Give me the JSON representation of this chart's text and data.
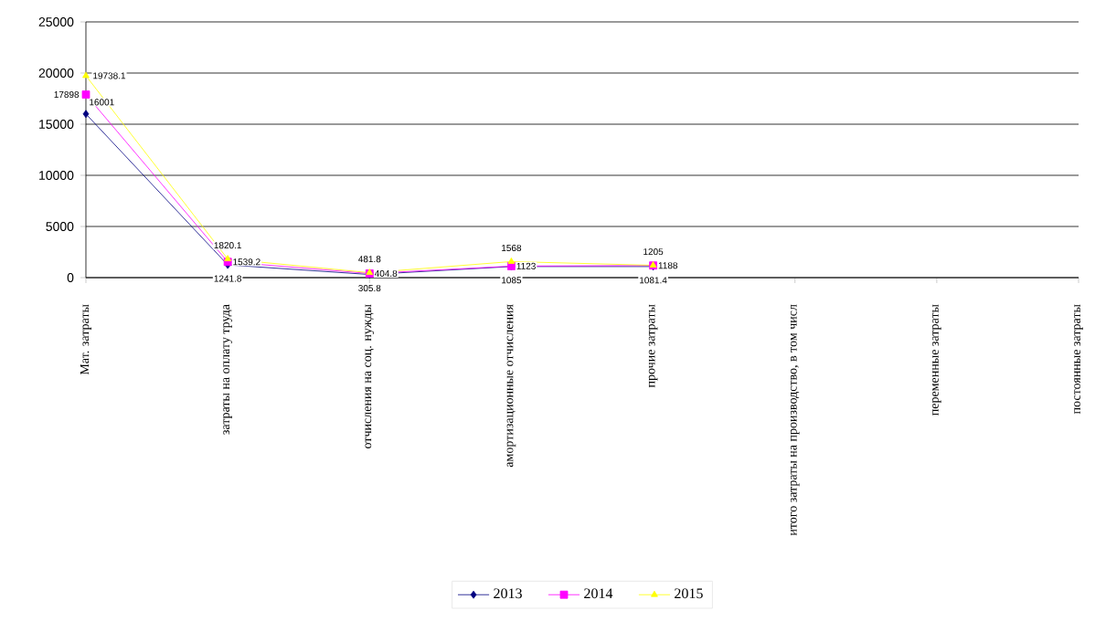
{
  "chart_data": {
    "type": "line",
    "categories": [
      "Мат. затраты",
      "затраты на оплату труда",
      "отчисления на соц. нужды",
      "амортизационные отчисления",
      "прочие затраты",
      "итого затраты на производство, в том числ",
      "переменные затраты",
      "постоянные затраты"
    ],
    "series": [
      {
        "name": "2013",
        "color": "#000080",
        "marker": "diamond",
        "values": [
          16001,
          1241.8,
          305.8,
          1085,
          1081.4,
          null,
          null,
          null
        ],
        "value_labels": [
          "16001",
          "1241.8",
          "305.8",
          "1085",
          "1081.4",
          null,
          null,
          null
        ]
      },
      {
        "name": "2014",
        "color": "#ff00ff",
        "marker": "square",
        "values": [
          17898,
          1539.2,
          404.8,
          1123,
          1188,
          null,
          null,
          null
        ],
        "value_labels": [
          "17898",
          "1539.2",
          "404.8",
          "1123",
          "1188",
          null,
          null,
          null
        ]
      },
      {
        "name": "2015",
        "color": "#ffff00",
        "marker": "triangle",
        "values": [
          19738.1,
          1820.1,
          481.8,
          1568,
          1205,
          null,
          null,
          null
        ],
        "value_labels": [
          "19738.1",
          "1820.1",
          "481.8",
          "1568",
          "1205",
          null,
          null,
          null
        ]
      }
    ],
    "ylim": [
      0,
      25000
    ],
    "yticks": [
      0,
      5000,
      10000,
      15000,
      20000,
      25000
    ],
    "grid": "y",
    "legend": "bottom"
  }
}
